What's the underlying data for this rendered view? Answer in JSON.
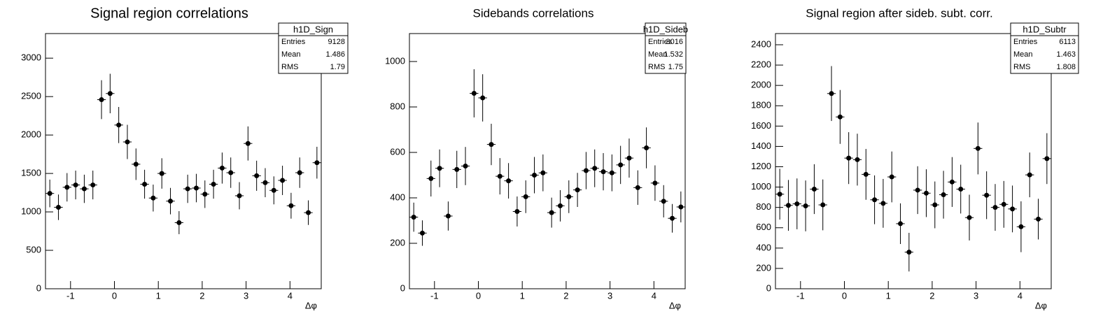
{
  "chart_data": [
    {
      "type": "errorbar",
      "title": "Signal region correlations",
      "x_label": "Δφ",
      "color": "#000000",
      "stats": {
        "title": "h1D_Sign",
        "rows": [
          [
            "Entries",
            9128
          ],
          [
            "Mean",
            1.486
          ],
          [
            "RMS",
            1.79
          ]
        ]
      },
      "x": [
        -1.4726,
        -1.2763,
        -1.0799,
        -0.8836,
        -0.6872,
        -0.4909,
        -0.2945,
        -0.0982,
        0.0982,
        0.2945,
        0.4909,
        0.6872,
        0.8836,
        1.0799,
        1.2763,
        1.4726,
        1.669,
        1.8653,
        2.0617,
        2.258,
        2.4544,
        2.6507,
        2.8471,
        3.0434,
        3.2398,
        3.4361,
        3.6325,
        3.8288,
        4.0252,
        4.2215,
        4.4179,
        4.6142
      ],
      "xerr": 0.0982,
      "values": [
        1240,
        1060,
        1320,
        1350,
        1300,
        1350,
        2460,
        2540,
        2130,
        1910,
        1620,
        1360,
        1180,
        1500,
        1140,
        860,
        1300,
        1310,
        1230,
        1360,
        1570,
        1510,
        1210,
        1890,
        1470,
        1380,
        1280,
        1410,
        1080,
        1510,
        990,
        1640
      ],
      "errors": [
        180,
        166,
        185,
        187,
        184,
        187,
        253,
        257,
        235,
        223,
        205,
        188,
        175,
        198,
        172,
        150,
        184,
        185,
        179,
        188,
        202,
        198,
        177,
        222,
        196,
        189,
        182,
        191,
        168,
        198,
        160,
        207
      ],
      "xlim": [
        -1.5708,
        4.7124
      ],
      "xticks": [
        -1,
        0,
        1,
        2,
        3,
        4
      ],
      "ylim": [
        0,
        3320
      ],
      "yticks": [
        0,
        500,
        1000,
        1500,
        2000,
        2500,
        3000
      ]
    },
    {
      "type": "errorbar",
      "title": "Sidebands correlations",
      "x_label": "Δφ",
      "color": "#000000",
      "stats": {
        "title": "h1D_Sideb",
        "rows": [
          [
            "Entries",
            3016
          ],
          [
            "Mean",
            1.532
          ],
          [
            "RMS",
            1.75
          ]
        ]
      },
      "x": [
        -1.4726,
        -1.2763,
        -1.0799,
        -0.8836,
        -0.6872,
        -0.4909,
        -0.2945,
        -0.0982,
        0.0982,
        0.2945,
        0.4909,
        0.6872,
        0.8836,
        1.0799,
        1.2763,
        1.4726,
        1.669,
        1.8653,
        2.0617,
        2.258,
        2.4544,
        2.6507,
        2.8471,
        3.0434,
        3.2398,
        3.4361,
        3.6325,
        3.8288,
        4.0252,
        4.2215,
        4.4179,
        4.6142
      ],
      "xerr": 0.0982,
      "values": [
        315,
        245,
        485,
        530,
        320,
        525,
        540,
        860,
        840,
        635,
        495,
        475,
        340,
        405,
        500,
        510,
        335,
        365,
        405,
        435,
        520,
        530,
        515,
        510,
        545,
        575,
        445,
        620,
        465,
        385,
        310,
        360
      ],
      "errors": [
        64,
        56,
        79,
        83,
        64,
        82,
        84,
        106,
        104,
        91,
        80,
        78,
        66,
        72,
        80,
        81,
        66,
        69,
        72,
        75,
        82,
        83,
        82,
        81,
        84,
        86,
        76,
        90,
        78,
        71,
        63,
        68
      ],
      "xlim": [
        -1.5708,
        4.7124
      ],
      "xticks": [
        -1,
        0,
        1,
        2,
        3,
        4
      ],
      "ylim": [
        0,
        1123
      ],
      "yticks": [
        0,
        200,
        400,
        600,
        800,
        1000
      ]
    },
    {
      "type": "errorbar",
      "title": "Signal region after sideb. subt. corr.",
      "x_label": "Δφ",
      "color": "#000000",
      "stats": {
        "title": "h1D_Subtr",
        "rows": [
          [
            "Entries",
            6113
          ],
          [
            "Mean",
            1.463
          ],
          [
            "RMS",
            1.808
          ]
        ]
      },
      "x": [
        -1.4726,
        -1.2763,
        -1.0799,
        -0.8836,
        -0.6872,
        -0.4909,
        -0.2945,
        -0.0982,
        0.0982,
        0.2945,
        0.4909,
        0.6872,
        0.8836,
        1.0799,
        1.2763,
        1.4726,
        1.669,
        1.8653,
        2.0617,
        2.258,
        2.4544,
        2.6507,
        2.8471,
        3.0434,
        3.2398,
        3.4361,
        3.6325,
        3.8288,
        4.0252,
        4.2215,
        4.4179,
        4.6142
      ],
      "xerr": 0.0982,
      "values": [
        930,
        820,
        835,
        815,
        980,
        825,
        1920,
        1690,
        1285,
        1270,
        1125,
        875,
        840,
        1100,
        640,
        360,
        970,
        940,
        825,
        925,
        1050,
        980,
        700,
        1380,
        920,
        800,
        830,
        785,
        610,
        1120,
        685,
        1280
      ],
      "errors": [
        250,
        250,
        250,
        250,
        245,
        250,
        270,
        265,
        255,
        255,
        250,
        240,
        240,
        250,
        200,
        190,
        235,
        235,
        230,
        235,
        245,
        240,
        225,
        255,
        235,
        230,
        230,
        230,
        250,
        220,
        200,
        250
      ],
      "xlim": [
        -1.5708,
        4.7124
      ],
      "xticks": [
        -1,
        0,
        1,
        2,
        3,
        4
      ],
      "ylim": [
        0,
        2510
      ],
      "yticks": [
        0,
        200,
        400,
        600,
        800,
        1000,
        1200,
        1400,
        1600,
        1800,
        2000,
        2200,
        2400
      ]
    }
  ]
}
